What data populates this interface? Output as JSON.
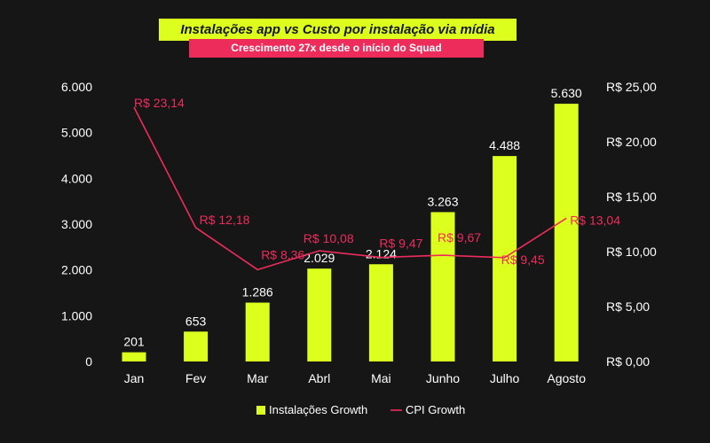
{
  "chart_data": {
    "type": "bar+line",
    "title": "Instalações app vs Custo por instalação via mídia",
    "subtitle": "Crescimento 27x desde o início do Squad",
    "categories": [
      "Jan",
      "Fev",
      "Mar",
      "Abrl",
      "Mai",
      "Junho",
      "Julho",
      "Agosto"
    ],
    "series": [
      {
        "name": "Instalações Growth",
        "type": "bar",
        "axis": "left",
        "values": [
          201,
          653,
          1286,
          2029,
          2124,
          3263,
          4488,
          5630
        ],
        "labels": [
          "201",
          "653",
          "1.286",
          "2.029",
          "2.124",
          "3.263",
          "4.488",
          "5.630"
        ]
      },
      {
        "name": "CPI Growth",
        "type": "line",
        "axis": "right",
        "values": [
          23.14,
          12.18,
          8.36,
          10.08,
          9.47,
          9.67,
          9.45,
          13.04
        ],
        "labels": [
          "R$ 23,14",
          "R$ 12,18",
          "R$ 8,36",
          "R$ 10,08",
          "R$ 9,47",
          "R$ 9,67",
          "R$ 9,45",
          "R$ 13,04"
        ]
      }
    ],
    "y_left": {
      "lim": [
        0,
        6000
      ],
      "ticks": [
        "0",
        "1.000",
        "2.000",
        "3.000",
        "4.000",
        "5.000",
        "6.000"
      ]
    },
    "y_right": {
      "lim": [
        0,
        25
      ],
      "ticks": [
        "R$ 0,00",
        "R$ 5,00",
        "R$ 10,00",
        "R$ 15,00",
        "R$ 20,00",
        "R$ 25,00"
      ]
    },
    "legend_position": "bottom-center",
    "grid": false
  },
  "colors": {
    "bar": "#dcff1e",
    "line": "#ee2c5c",
    "text": "#ffffff",
    "background": "#161616",
    "title_bg": "#dcff1e",
    "subtitle_bg": "#ee2c5c"
  }
}
